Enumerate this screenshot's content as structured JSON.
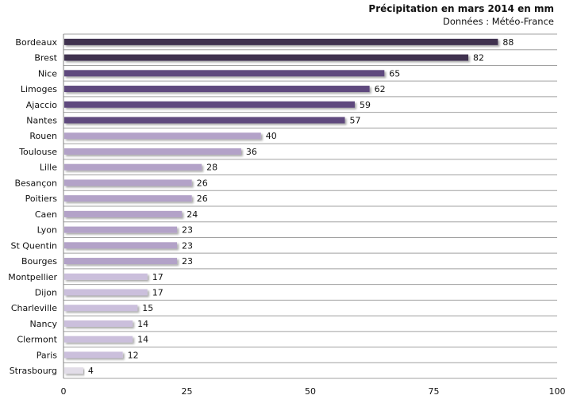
{
  "chart_data": {
    "type": "bar",
    "orientation": "horizontal",
    "title": "Précipitation en mars 2014  en mm",
    "subtitle": "Données : Météo-France",
    "categories": [
      "Bordeaux",
      "Brest",
      "Nice",
      "Limoges",
      "Ajaccio",
      "Nantes",
      "Rouen",
      "Toulouse",
      "Lille",
      "Besançon",
      "Poitiers",
      "Caen",
      "Lyon",
      "St Quentin",
      "Bourges",
      "Montpellier",
      "Dijon",
      "Charleville",
      "Nancy",
      "Clermont",
      "Paris",
      "Strasbourg"
    ],
    "values": [
      88,
      82,
      65,
      62,
      59,
      57,
      40,
      36,
      28,
      26,
      26,
      24,
      23,
      23,
      23,
      17,
      17,
      15,
      14,
      14,
      12,
      4
    ],
    "xlim": [
      0,
      100
    ],
    "xticks": [
      0,
      25,
      50,
      75,
      100
    ],
    "grid": "horizontal",
    "colors": {
      "very_high": "#403050",
      "high": "#5e4a7e",
      "medium": "#b3a2c8",
      "low": "#cbbfdc",
      "very_low": "#e2dde8"
    }
  }
}
